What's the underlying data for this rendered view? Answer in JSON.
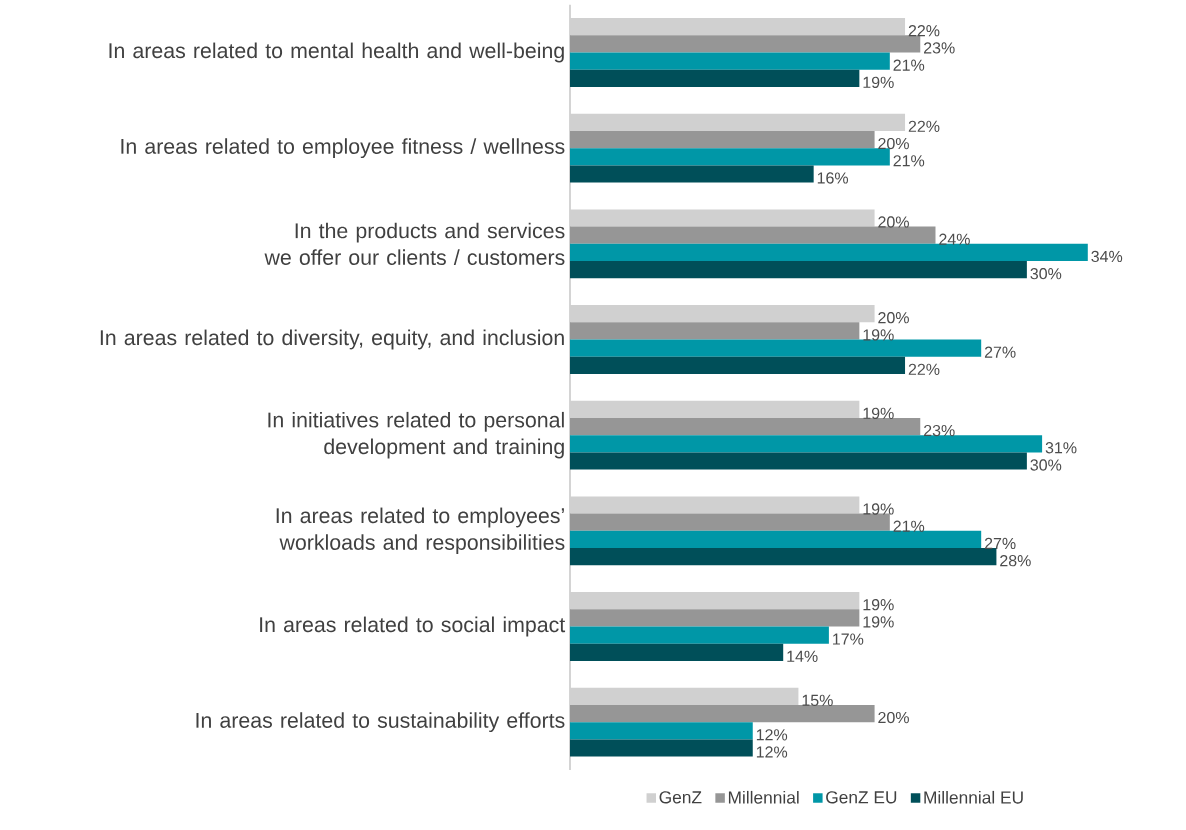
{
  "chart_data": {
    "type": "bar",
    "orientation": "horizontal",
    "legend": "bottom",
    "categories": [
      "In areas related to mental health and well-being",
      "In areas related to employee fitness / wellness",
      "In the products and services we offer our clients / customers",
      "In areas related to diversity, equity, and inclusion",
      "In initiatives related to personal development and training",
      "In areas related to employees’ workloads and responsibilities",
      "In areas related to social impact",
      "In areas related to sustainability efforts"
    ],
    "series": [
      {
        "name": "GenZ",
        "color": "#d0d0d0",
        "values": [
          22,
          22,
          20,
          20,
          19,
          19,
          19,
          15
        ],
        "value_labels": [
          "22%",
          "22%",
          "20%",
          "20%",
          "19%",
          "19%",
          "19%",
          "15%"
        ]
      },
      {
        "name": "Millennial",
        "color": "#969696",
        "values": [
          23,
          20,
          24,
          19,
          23,
          21,
          19,
          20
        ],
        "value_labels": [
          "23%",
          "20%",
          "24%",
          "19%",
          "23%",
          "21%",
          "19%",
          "20%"
        ]
      },
      {
        "name": "GenZ EU",
        "color": "#0097a7",
        "values": [
          21,
          21,
          34,
          27,
          31,
          27,
          17,
          12
        ],
        "value_labels": [
          "21%",
          "21%",
          "34%",
          "27%",
          "31%",
          "27%",
          "17%",
          "12%"
        ]
      },
      {
        "name": "Millennial EU",
        "color": "#004f59",
        "values": [
          19,
          16,
          30,
          22,
          30,
          28,
          14,
          12
        ],
        "value_labels": [
          "19%",
          "16%",
          "30%",
          "22%",
          "30%",
          "28%",
          "14%",
          "12%"
        ]
      }
    ]
  }
}
